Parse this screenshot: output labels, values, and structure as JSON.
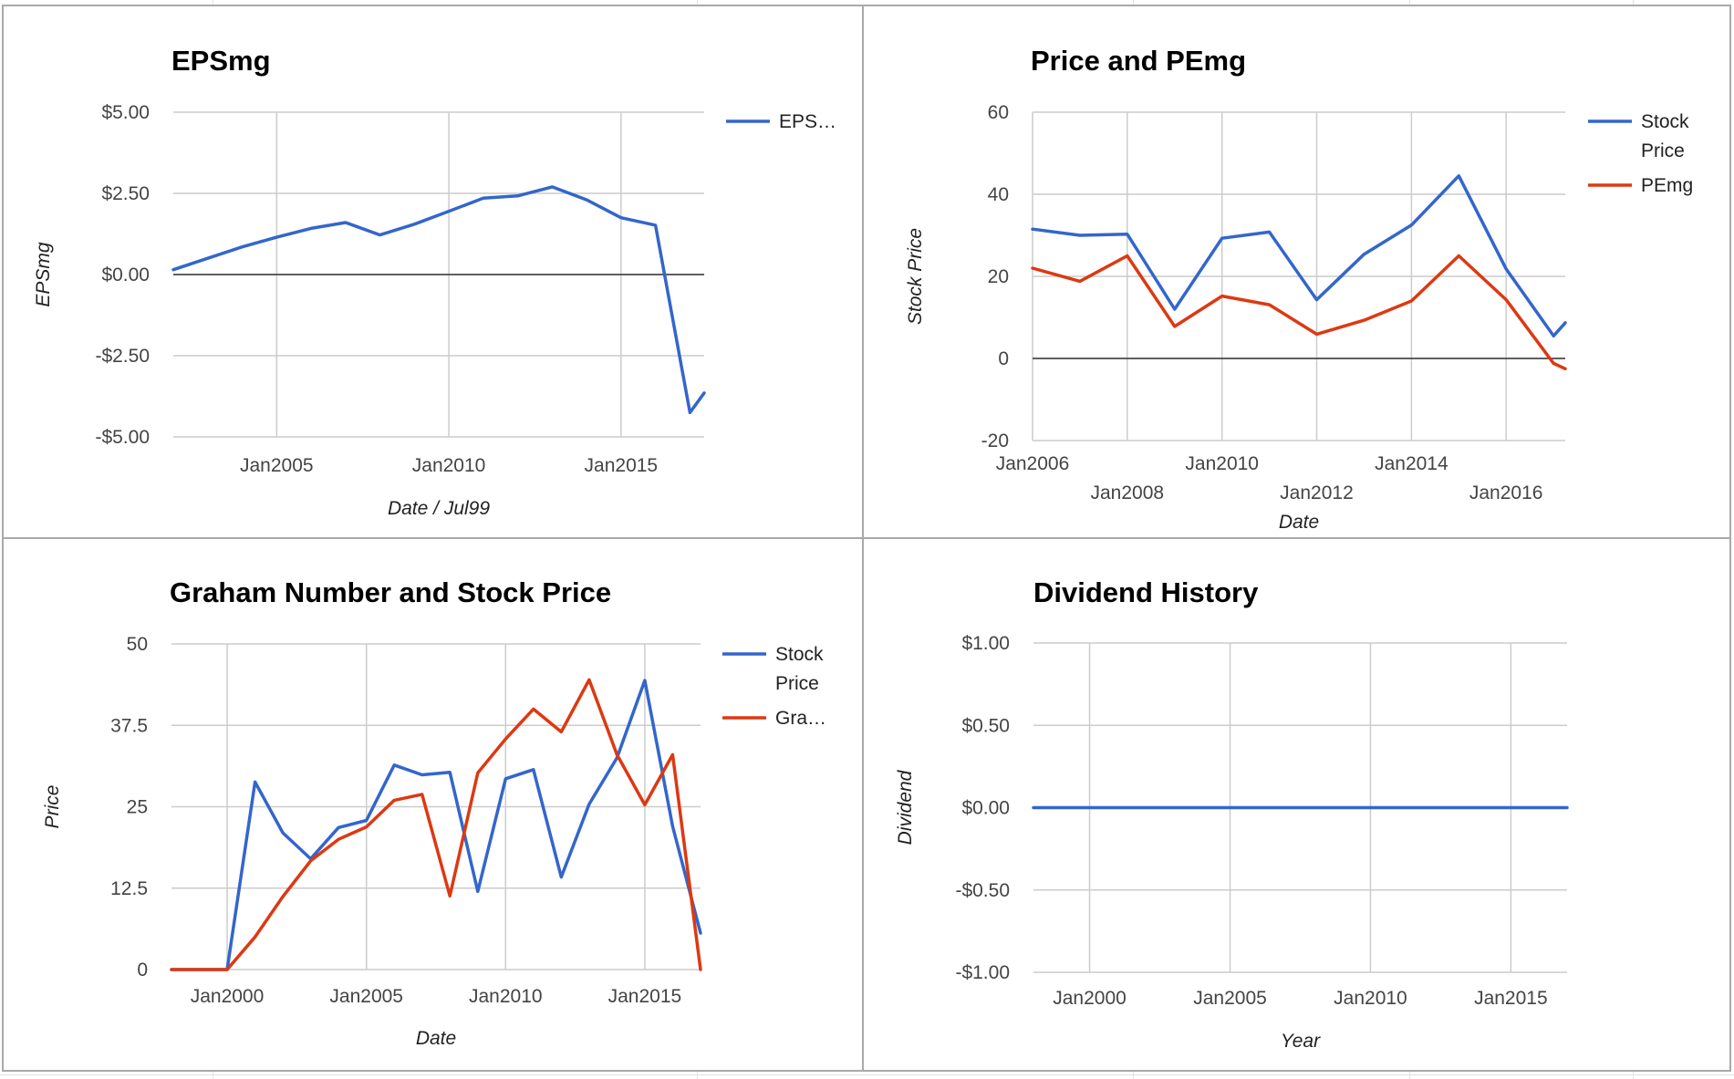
{
  "chart_data": [
    {
      "id": "epsmg",
      "type": "line",
      "title": "EPSmg",
      "xlabel": "Date / Jul99",
      "ylabel": "EPSmg",
      "grid": true,
      "legend_placement": "right",
      "xlim": [
        "2002-01-01",
        "2017-06-01"
      ],
      "ylim": [
        -5,
        5
      ],
      "x_ticks": [
        {
          "date": "2005-01-01",
          "label": "Jan2005"
        },
        {
          "date": "2010-01-01",
          "label": "Jan2010"
        },
        {
          "date": "2015-01-01",
          "label": "Jan2015"
        }
      ],
      "y_ticks": [
        {
          "value": 5,
          "label": "$5.00"
        },
        {
          "value": 2.5,
          "label": "$2.50"
        },
        {
          "value": 0,
          "label": "$0.00"
        },
        {
          "value": -2.5,
          "label": "-$2.50"
        },
        {
          "value": -5,
          "label": "-$5.00"
        }
      ],
      "series": [
        {
          "name": "EPS…",
          "color": "#3366cc",
          "points": [
            {
              "x": "2002-01-01",
              "y": 0.15
            },
            {
              "x": "2003-01-01",
              "y": 0.5
            },
            {
              "x": "2004-01-01",
              "y": 0.85
            },
            {
              "x": "2005-01-01",
              "y": 1.15
            },
            {
              "x": "2006-01-01",
              "y": 1.42
            },
            {
              "x": "2007-01-01",
              "y": 1.6
            },
            {
              "x": "2008-01-01",
              "y": 1.22
            },
            {
              "x": "2009-01-01",
              "y": 1.55
            },
            {
              "x": "2010-01-01",
              "y": 1.95
            },
            {
              "x": "2011-01-01",
              "y": 2.35
            },
            {
              "x": "2012-01-01",
              "y": 2.42
            },
            {
              "x": "2013-01-01",
              "y": 2.7
            },
            {
              "x": "2014-01-01",
              "y": 2.3
            },
            {
              "x": "2015-01-01",
              "y": 1.75
            },
            {
              "x": "2016-01-01",
              "y": 1.52
            },
            {
              "x": "2017-01-01",
              "y": -4.25
            },
            {
              "x": "2017-06-01",
              "y": -3.65
            }
          ]
        }
      ]
    },
    {
      "id": "price-pemg",
      "type": "line",
      "title": "Price and PEmg",
      "xlabel": "Date",
      "ylabel": "Stock Price",
      "grid": true,
      "legend_placement": "right",
      "xlim": [
        "2006-01-01",
        "2017-04-01"
      ],
      "ylim": [
        -20,
        60
      ],
      "x_ticks": [
        {
          "date": "2006-01-01",
          "label": "Jan2006",
          "row": 0
        },
        {
          "date": "2008-01-01",
          "label": "Jan2008",
          "row": 1
        },
        {
          "date": "2010-01-01",
          "label": "Jan2010",
          "row": 0
        },
        {
          "date": "2012-01-01",
          "label": "Jan2012",
          "row": 1
        },
        {
          "date": "2014-01-01",
          "label": "Jan2014",
          "row": 0
        },
        {
          "date": "2016-01-01",
          "label": "Jan2016",
          "row": 1
        }
      ],
      "y_ticks": [
        {
          "value": 60,
          "label": "60"
        },
        {
          "value": 40,
          "label": "40"
        },
        {
          "value": 20,
          "label": "20"
        },
        {
          "value": 0,
          "label": "0"
        },
        {
          "value": -20,
          "label": "-20"
        }
      ],
      "series": [
        {
          "name": "Stock Price",
          "legend_lines": [
            "Stock",
            "Price"
          ],
          "color": "#3366cc",
          "points": [
            {
              "x": "2006-01-01",
              "y": 31.5
            },
            {
              "x": "2007-01-01",
              "y": 30.0
            },
            {
              "x": "2008-01-01",
              "y": 30.3
            },
            {
              "x": "2009-01-01",
              "y": 12.0
            },
            {
              "x": "2010-01-01",
              "y": 29.3
            },
            {
              "x": "2011-01-01",
              "y": 30.8
            },
            {
              "x": "2012-01-01",
              "y": 14.3
            },
            {
              "x": "2013-01-01",
              "y": 25.4
            },
            {
              "x": "2014-01-01",
              "y": 32.5
            },
            {
              "x": "2015-01-01",
              "y": 44.5
            },
            {
              "x": "2016-01-01",
              "y": 21.8
            },
            {
              "x": "2017-01-01",
              "y": 5.5
            },
            {
              "x": "2017-04-01",
              "y": 8.7
            }
          ]
        },
        {
          "name": "PEmg",
          "legend_lines": [
            "PEmg"
          ],
          "color": "#dc3912",
          "points": [
            {
              "x": "2006-01-01",
              "y": 22.0
            },
            {
              "x": "2007-01-01",
              "y": 18.8
            },
            {
              "x": "2008-01-01",
              "y": 25.0
            },
            {
              "x": "2009-01-01",
              "y": 7.8
            },
            {
              "x": "2010-01-01",
              "y": 15.2
            },
            {
              "x": "2011-01-01",
              "y": 13.1
            },
            {
              "x": "2012-01-01",
              "y": 5.9
            },
            {
              "x": "2013-01-01",
              "y": 9.3
            },
            {
              "x": "2014-01-01",
              "y": 14.0
            },
            {
              "x": "2015-01-01",
              "y": 25.0
            },
            {
              "x": "2016-01-01",
              "y": 14.3
            },
            {
              "x": "2017-01-01",
              "y": -1.2
            },
            {
              "x": "2017-04-01",
              "y": -2.5
            }
          ]
        }
      ]
    },
    {
      "id": "graham",
      "type": "line",
      "title": "Graham Number and Stock Price",
      "xlabel": "Date",
      "ylabel": "Price",
      "grid": true,
      "legend_placement": "right",
      "xlim": [
        "1998-01-01",
        "2017-01-01"
      ],
      "ylim": [
        0,
        50
      ],
      "x_ticks": [
        {
          "date": "2000-01-01",
          "label": "Jan2000"
        },
        {
          "date": "2005-01-01",
          "label": "Jan2005"
        },
        {
          "date": "2010-01-01",
          "label": "Jan2010"
        },
        {
          "date": "2015-01-01",
          "label": "Jan2015"
        }
      ],
      "y_ticks": [
        {
          "value": 50,
          "label": "50"
        },
        {
          "value": 37.5,
          "label": "37.5"
        },
        {
          "value": 25,
          "label": "25"
        },
        {
          "value": 12.5,
          "label": "12.5"
        },
        {
          "value": 0,
          "label": "0"
        }
      ],
      "series": [
        {
          "name": "Stock Price",
          "legend_lines": [
            "Stock",
            "Price"
          ],
          "color": "#3366cc",
          "points": [
            {
              "x": "1998-01-01",
              "y": 0
            },
            {
              "x": "1999-01-01",
              "y": 0
            },
            {
              "x": "2000-01-01",
              "y": 0
            },
            {
              "x": "2001-01-01",
              "y": 28.8
            },
            {
              "x": "2002-01-01",
              "y": 21.0
            },
            {
              "x": "2003-01-01",
              "y": 17.0
            },
            {
              "x": "2004-01-01",
              "y": 21.8
            },
            {
              "x": "2005-01-01",
              "y": 22.9
            },
            {
              "x": "2006-01-01",
              "y": 31.4
            },
            {
              "x": "2007-01-01",
              "y": 29.9
            },
            {
              "x": "2008-01-01",
              "y": 30.3
            },
            {
              "x": "2009-01-01",
              "y": 12.0
            },
            {
              "x": "2010-01-01",
              "y": 29.3
            },
            {
              "x": "2011-01-01",
              "y": 30.7
            },
            {
              "x": "2012-01-01",
              "y": 14.2
            },
            {
              "x": "2013-01-01",
              "y": 25.4
            },
            {
              "x": "2014-01-01",
              "y": 32.5
            },
            {
              "x": "2015-01-01",
              "y": 44.4
            },
            {
              "x": "2016-01-01",
              "y": 22.0
            },
            {
              "x": "2017-01-01",
              "y": 5.6
            }
          ]
        },
        {
          "name": "Gra…",
          "legend_lines": [
            "Gra…"
          ],
          "color": "#dc3912",
          "points": [
            {
              "x": "1998-01-01",
              "y": 0
            },
            {
              "x": "1999-01-01",
              "y": 0
            },
            {
              "x": "2000-01-01",
              "y": 0
            },
            {
              "x": "2001-01-01",
              "y": 5.0
            },
            {
              "x": "2002-01-01",
              "y": 11.2
            },
            {
              "x": "2003-01-01",
              "y": 16.7
            },
            {
              "x": "2004-01-01",
              "y": 20.0
            },
            {
              "x": "2005-01-01",
              "y": 21.9
            },
            {
              "x": "2006-01-01",
              "y": 26.0
            },
            {
              "x": "2007-01-01",
              "y": 26.9
            },
            {
              "x": "2008-01-01",
              "y": 11.3
            },
            {
              "x": "2009-01-01",
              "y": 30.2
            },
            {
              "x": "2010-01-01",
              "y": 35.4
            },
            {
              "x": "2011-01-01",
              "y": 40.0
            },
            {
              "x": "2012-01-01",
              "y": 36.5
            },
            {
              "x": "2013-01-01",
              "y": 44.5
            },
            {
              "x": "2014-01-01",
              "y": 33.0
            },
            {
              "x": "2015-01-01",
              "y": 25.3
            },
            {
              "x": "2016-01-01",
              "y": 33.0
            },
            {
              "x": "2017-01-01",
              "y": 0
            }
          ]
        }
      ]
    },
    {
      "id": "dividend",
      "type": "line",
      "title": "Dividend History",
      "xlabel": "Year",
      "ylabel": "Dividend",
      "grid": true,
      "legend_placement": "none",
      "xlim": [
        "1998-01-01",
        "2017-01-01"
      ],
      "ylim": [
        -1,
        1
      ],
      "x_ticks": [
        {
          "date": "2000-01-01",
          "label": "Jan2000"
        },
        {
          "date": "2005-01-01",
          "label": "Jan2005"
        },
        {
          "date": "2010-01-01",
          "label": "Jan2010"
        },
        {
          "date": "2015-01-01",
          "label": "Jan2015"
        }
      ],
      "y_ticks": [
        {
          "value": 1,
          "label": "$1.00"
        },
        {
          "value": 0.5,
          "label": "$0.50"
        },
        {
          "value": 0,
          "label": "$0.00"
        },
        {
          "value": -0.5,
          "label": "-$0.50"
        },
        {
          "value": -1,
          "label": "-$1.00"
        }
      ],
      "series": [
        {
          "name": "Dividend",
          "color": "#3366cc",
          "show_in_legend": false,
          "points": [
            {
              "x": "1998-01-01",
              "y": 0
            },
            {
              "x": "2017-01-01",
              "y": 0
            }
          ]
        }
      ]
    }
  ]
}
